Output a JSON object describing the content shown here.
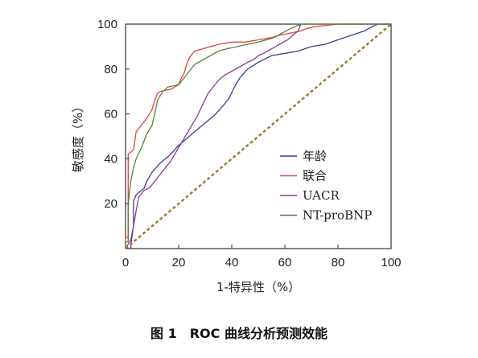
{
  "caption": "图 1　ROC 曲线分析预测效能",
  "chart_data": {
    "type": "line",
    "title": "",
    "xlabel": "1-特异性（%）",
    "ylabel": "敏感度（%）",
    "xlim": [
      0,
      100
    ],
    "ylim": [
      0,
      100
    ],
    "xticks": [
      "0",
      "20",
      "40",
      "60",
      "80",
      "100"
    ],
    "yticks": [
      "20",
      "40",
      "60",
      "80",
      "100"
    ],
    "legend_position": "bottom-right",
    "series": [
      {
        "name": "年龄",
        "color": "#3c3f8f",
        "points": [
          [
            0,
            0
          ],
          [
            2,
            0
          ],
          [
            2,
            2
          ],
          [
            3,
            10
          ],
          [
            3,
            21
          ],
          [
            4,
            24
          ],
          [
            7,
            27
          ],
          [
            8,
            30
          ],
          [
            10,
            34
          ],
          [
            13,
            38
          ],
          [
            17,
            42
          ],
          [
            20,
            46
          ],
          [
            24,
            50
          ],
          [
            28,
            54
          ],
          [
            31,
            57
          ],
          [
            34,
            60
          ],
          [
            37,
            64
          ],
          [
            39,
            67
          ],
          [
            41,
            72
          ],
          [
            43,
            76
          ],
          [
            46,
            80
          ],
          [
            50,
            83
          ],
          [
            55,
            86
          ],
          [
            60,
            87
          ],
          [
            65,
            88
          ],
          [
            70,
            90
          ],
          [
            75,
            91
          ],
          [
            80,
            93
          ],
          [
            85,
            95
          ],
          [
            90,
            97
          ],
          [
            93,
            99
          ],
          [
            95,
            100
          ],
          [
            100,
            100
          ]
        ]
      },
      {
        "name": "联合",
        "color": "#e0453a",
        "points": [
          [
            0,
            0
          ],
          [
            0,
            5
          ],
          [
            1,
            5
          ],
          [
            1,
            42
          ],
          [
            3,
            44
          ],
          [
            4,
            52
          ],
          [
            6,
            55
          ],
          [
            8,
            58
          ],
          [
            10,
            62
          ],
          [
            11,
            66
          ],
          [
            12,
            69
          ],
          [
            13,
            70
          ],
          [
            17,
            71
          ],
          [
            20,
            73
          ],
          [
            21,
            76
          ],
          [
            22,
            78
          ],
          [
            23,
            82
          ],
          [
            24,
            85
          ],
          [
            26,
            88
          ],
          [
            29,
            89
          ],
          [
            32,
            90
          ],
          [
            35,
            91
          ],
          [
            40,
            92
          ],
          [
            45,
            92
          ],
          [
            50,
            93
          ],
          [
            55,
            94
          ],
          [
            58,
            95
          ],
          [
            62,
            96
          ],
          [
            66,
            97
          ],
          [
            68,
            98
          ],
          [
            72,
            99
          ],
          [
            80,
            100
          ],
          [
            100,
            100
          ]
        ]
      },
      {
        "name": "UACR",
        "color": "#8a3a8f",
        "points": [
          [
            0,
            0
          ],
          [
            1,
            2
          ],
          [
            2,
            4
          ],
          [
            3,
            10
          ],
          [
            4,
            17
          ],
          [
            5,
            23
          ],
          [
            7,
            26
          ],
          [
            9,
            27
          ],
          [
            11,
            30
          ],
          [
            13,
            33
          ],
          [
            15,
            36
          ],
          [
            17,
            39
          ],
          [
            19,
            43
          ],
          [
            21,
            47
          ],
          [
            23,
            51
          ],
          [
            25,
            55
          ],
          [
            27,
            59
          ],
          [
            29,
            64
          ],
          [
            31,
            69
          ],
          [
            33,
            72
          ],
          [
            35,
            75
          ],
          [
            37,
            77
          ],
          [
            40,
            79
          ],
          [
            43,
            81
          ],
          [
            46,
            83
          ],
          [
            48,
            84
          ],
          [
            50,
            86
          ],
          [
            52,
            87
          ],
          [
            55,
            89
          ],
          [
            58,
            91
          ],
          [
            61,
            93
          ],
          [
            63,
            95
          ],
          [
            65,
            97
          ],
          [
            66,
            100
          ],
          [
            100,
            100
          ]
        ]
      },
      {
        "name": "NT-proBNP",
        "color": "#5a7d3a",
        "points": [
          [
            0,
            0
          ],
          [
            0,
            3
          ],
          [
            1,
            3
          ],
          [
            1,
            20
          ],
          [
            2,
            30
          ],
          [
            3,
            36
          ],
          [
            4,
            40
          ],
          [
            6,
            45
          ],
          [
            8,
            51
          ],
          [
            10,
            55
          ],
          [
            11,
            60
          ],
          [
            12,
            66
          ],
          [
            14,
            70
          ],
          [
            16,
            72
          ],
          [
            20,
            73
          ],
          [
            22,
            76
          ],
          [
            24,
            79
          ],
          [
            26,
            82
          ],
          [
            29,
            84
          ],
          [
            32,
            86
          ],
          [
            35,
            88
          ],
          [
            38,
            89
          ],
          [
            42,
            90
          ],
          [
            46,
            91
          ],
          [
            50,
            92
          ],
          [
            53,
            93
          ],
          [
            56,
            94
          ],
          [
            59,
            96
          ],
          [
            62,
            98
          ],
          [
            64,
            99
          ],
          [
            66,
            100
          ],
          [
            100,
            100
          ]
        ]
      },
      {
        "name": "",
        "color": "#9a7a30",
        "dashed": true,
        "points": [
          [
            0,
            0
          ],
          [
            100,
            100
          ]
        ]
      }
    ]
  }
}
